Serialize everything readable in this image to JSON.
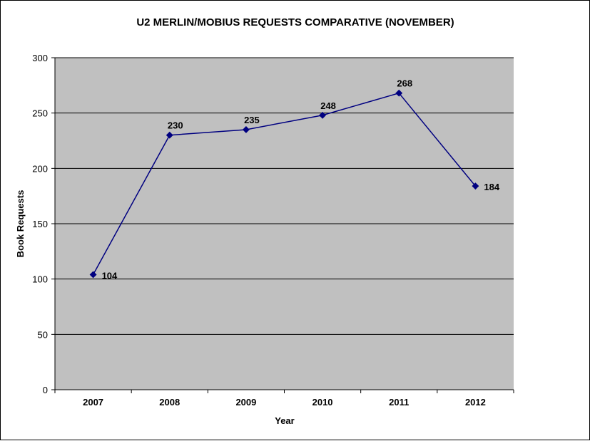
{
  "chart_data": {
    "type": "line",
    "title": "U2 MERLIN/MOBIUS REQUESTS COMPARATIVE (NOVEMBER)",
    "xlabel": "Year",
    "ylabel": "Book Requests",
    "categories": [
      "2007",
      "2008",
      "2009",
      "2010",
      "2011",
      "2012"
    ],
    "series": [
      {
        "values": [
          104,
          230,
          235,
          248,
          268,
          184
        ]
      }
    ],
    "data_labels": [
      "104",
      "230",
      "235",
      "248",
      "268",
      "184"
    ],
    "ylim": [
      0,
      300
    ],
    "yticks": [
      0,
      50,
      100,
      150,
      200,
      250,
      300
    ],
    "grid": "horizontal",
    "legend": "none",
    "colors": {
      "plot_background": "#c0c0c0",
      "line": "#000080",
      "gridline": "#000000"
    }
  }
}
